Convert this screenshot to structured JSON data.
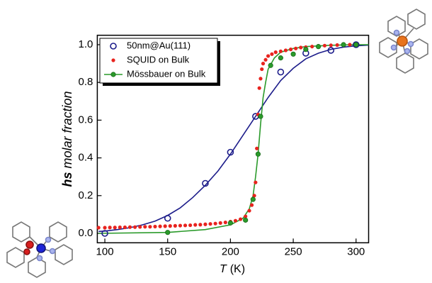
{
  "chart_data": {
    "type": "scatter",
    "xlabel": [
      "T",
      "(K)"
    ],
    "ylabel": [
      "hs",
      "molar fraction"
    ],
    "xlim": [
      94,
      310
    ],
    "ylim": [
      -0.05,
      1.05
    ],
    "xticks": [
      100,
      150,
      200,
      250,
      300
    ],
    "yticks": [
      {
        "value": 0,
        "label": "0.0"
      },
      {
        "value": 0.2,
        "label": "0.2"
      },
      {
        "value": 0.4,
        "label": "0.4"
      },
      {
        "value": 0.6,
        "label": "0.6"
      },
      {
        "value": 0.8,
        "label": "0.8"
      },
      {
        "value": 1,
        "label": "1.0"
      }
    ],
    "legend": "upper left",
    "series": [
      {
        "name": "50nm@Au(111)",
        "color": "#1c1c8a",
        "marker": "open",
        "legend_line": false,
        "x": [
          100,
          150,
          180,
          200,
          220,
          240,
          260,
          280,
          300
        ],
        "values": [
          0.0,
          0.08,
          0.265,
          0.43,
          0.62,
          0.855,
          0.955,
          0.97,
          1.0
        ]
      },
      {
        "name": "SQUID on Bulk",
        "color": "#e8231e",
        "marker": "dot",
        "legend_line": false,
        "x": [
          95,
          100,
          104,
          108,
          112,
          116,
          120,
          124,
          128,
          132,
          136,
          140,
          144,
          148,
          152,
          156,
          160,
          164,
          168,
          172,
          176,
          180,
          184,
          188,
          192,
          196,
          200,
          204,
          208,
          212,
          215,
          217,
          219,
          220,
          221,
          222,
          223,
          224,
          225,
          226,
          228,
          230,
          233,
          236,
          240,
          244,
          248,
          252,
          256,
          260,
          265,
          270,
          275,
          280,
          285,
          290,
          295,
          300
        ],
        "values": [
          0.03,
          0.03,
          0.031,
          0.031,
          0.032,
          0.032,
          0.033,
          0.033,
          0.034,
          0.035,
          0.035,
          0.036,
          0.037,
          0.038,
          0.039,
          0.04,
          0.041,
          0.042,
          0.043,
          0.045,
          0.046,
          0.048,
          0.05,
          0.052,
          0.055,
          0.058,
          0.062,
          0.067,
          0.075,
          0.09,
          0.12,
          0.15,
          0.2,
          0.27,
          0.45,
          0.63,
          0.77,
          0.82,
          0.87,
          0.9,
          0.92,
          0.94,
          0.95,
          0.96,
          0.965,
          0.97,
          0.975,
          0.98,
          0.985,
          0.987,
          0.99,
          0.993,
          0.995,
          0.997,
          0.998,
          0.999,
          1.0,
          1.0
        ]
      },
      {
        "name": "Mössbauer on Bulk",
        "color": "#2a9a2a",
        "marker": "filled",
        "legend_line": true,
        "x": [
          150,
          200,
          212,
          218,
          222,
          224,
          232,
          240,
          250,
          260,
          270,
          290,
          300
        ],
        "values": [
          0.005,
          0.055,
          0.07,
          0.18,
          0.42,
          0.62,
          0.89,
          0.93,
          0.95,
          0.975,
          0.99,
          1.0,
          1.0
        ]
      }
    ],
    "fits": [
      {
        "color": "#1c1c8a",
        "x": [
          95,
          100,
          110,
          120,
          130,
          140,
          150,
          160,
          170,
          180,
          190,
          200,
          210,
          220,
          230,
          240,
          250,
          260,
          270,
          280,
          290,
          300,
          310
        ],
        "values": [
          0.01,
          0.012,
          0.02,
          0.03,
          0.045,
          0.065,
          0.095,
          0.135,
          0.19,
          0.255,
          0.33,
          0.42,
          0.52,
          0.62,
          0.72,
          0.81,
          0.875,
          0.925,
          0.955,
          0.975,
          0.987,
          0.994,
          0.998
        ]
      },
      {
        "color": "#2a9a2a",
        "x": [
          95,
          150,
          180,
          200,
          210,
          215,
          218,
          220,
          222,
          224,
          226,
          228,
          230,
          235,
          240,
          250,
          260,
          280,
          300,
          310
        ],
        "values": [
          0,
          0.005,
          0.02,
          0.045,
          0.08,
          0.13,
          0.2,
          0.3,
          0.42,
          0.58,
          0.72,
          0.8,
          0.87,
          0.93,
          0.96,
          0.98,
          0.99,
          0.997,
          1.0,
          1.0
        ]
      }
    ]
  }
}
